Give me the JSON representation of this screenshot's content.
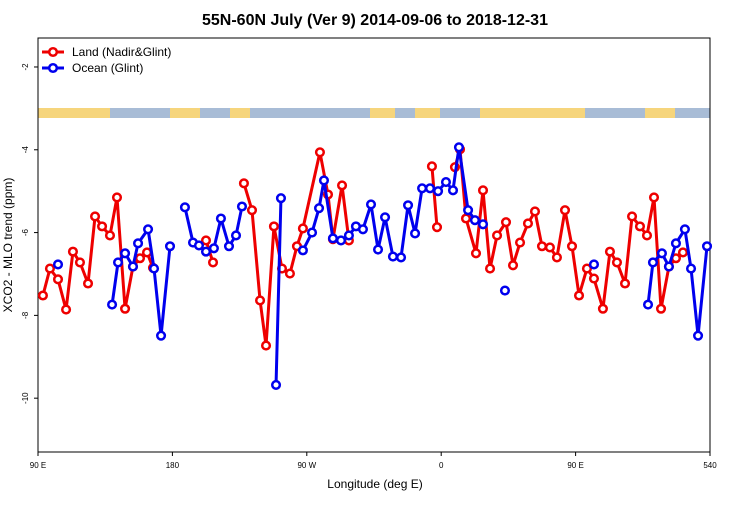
{
  "chart_data": {
    "type": "line",
    "title": "55N-60N July (Ver 9)   2014-09-06 to 2018-12-31",
    "x_label": "Longitude (deg E)",
    "y_label": "XCO2 - MLO trend (ppm)",
    "xlim": [
      90,
      540
    ],
    "xticks": [
      {
        "value": 90,
        "label": "90 E"
      },
      180,
      {
        "value": 270,
        "label": "90 W"
      },
      {
        "value": 360,
        "label": "0"
      },
      {
        "value": 450,
        "label": "90 E"
      },
      540
    ],
    "ylim": [
      -11.3,
      -1.3
    ],
    "yticks": [
      -10,
      -8,
      -6,
      -4,
      -2
    ],
    "legend": "topleft",
    "series": [
      {
        "name": "Land (Nadir&Glint)",
        "color": "#ee0000",
        "x": [
          93.3,
          98.0,
          103.4,
          108.8,
          113.4,
          118.1,
          123.5,
          128.2,
          132.9,
          138.2,
          142.9,
          148.3,
          153.6,
          158.3,
          163.0,
          167.0,
          null,
          202.5,
          207.2,
          null,
          227.9,
          233.3,
          238.7,
          242.7,
          248.0,
          253.4,
          258.7,
          263.4,
          267.4,
          278.8,
          284.2,
          287.5,
          293.6,
          298.2,
          null,
          353.8,
          357.2,
          null,
          369.2,
          372.6,
          376.6,
          383.3,
          388.0,
          392.7,
          397.4,
          403.4,
          408.1,
          412.8,
          418.1,
          422.8,
          427.5,
          432.8,
          437.5,
          442.9,
          447.6,
          452.3,
          457.6,
          462.3,
          468.3,
          473.0,
          477.7,
          483.1,
          487.8,
          493.1,
          497.8,
          502.5,
          507.2,
          512.5,
          517.2,
          521.9
        ],
        "values": [
          -7.52,
          -6.87,
          -7.13,
          -7.86,
          -6.46,
          -6.72,
          -7.23,
          -5.61,
          -5.85,
          -6.07,
          -5.15,
          -7.84,
          -6.82,
          -6.62,
          -6.48,
          -6.85,
          null,
          -6.19,
          -6.72,
          null,
          -4.81,
          -5.46,
          -7.64,
          -8.73,
          -5.85,
          -6.87,
          -6.99,
          -6.33,
          -5.9,
          -4.06,
          -5.08,
          -6.16,
          -4.86,
          -6.19,
          null,
          -4.4,
          -5.87,
          null,
          -4.42,
          -3.99,
          -5.66,
          -6.5,
          -4.98,
          -6.87,
          -6.07,
          -5.75,
          -6.79,
          -6.24,
          -5.78,
          -5.49,
          -6.33,
          -6.36,
          -6.6,
          -5.46,
          -6.33,
          -7.52,
          -6.87,
          -7.11,
          -7.84,
          -6.46,
          -6.72,
          -7.23,
          -5.61,
          -5.85,
          -6.07,
          -5.15,
          -7.84,
          -6.82,
          -6.62,
          -6.48
        ]
      },
      {
        "name": "Ocean (Glint)",
        "color": "#0000ee",
        "x": [
          103.4,
          null,
          139.6,
          143.6,
          148.3,
          153.6,
          157.0,
          163.7,
          167.7,
          172.4,
          178.4,
          null,
          188.4,
          193.8,
          197.8,
          202.5,
          207.8,
          212.5,
          217.9,
          222.6,
          226.6,
          null,
          249.4,
          252.7,
          null,
          267.4,
          273.5,
          278.2,
          281.5,
          287.5,
          292.9,
          298.2,
          302.9,
          307.6,
          313.0,
          317.7,
          322.4,
          327.7,
          333.1,
          337.8,
          342.5,
          347.2,
          352.5,
          357.9,
          363.2,
          367.9,
          371.9,
          378.0,
          382.6,
          388.0,
          null,
          402.7,
          null,
          462.3,
          null,
          498.5,
          501.8,
          507.8,
          512.5,
          517.2,
          523.2,
          527.3,
          532.0,
          538.0
        ],
        "values": [
          -6.77,
          null,
          -7.74,
          -6.72,
          -6.5,
          -6.82,
          -6.26,
          -5.92,
          -6.87,
          -8.49,
          -6.33,
          null,
          -5.39,
          -6.24,
          -6.31,
          -6.46,
          -6.38,
          -5.66,
          -6.33,
          -6.07,
          -5.37,
          null,
          -9.68,
          -5.17,
          null,
          -6.43,
          -6.0,
          -5.41,
          -4.74,
          -6.14,
          -6.19,
          -6.07,
          -5.85,
          -5.92,
          -5.32,
          -6.41,
          -5.63,
          -6.58,
          -6.6,
          -5.34,
          -6.02,
          -4.93,
          -4.93,
          -5.0,
          -4.78,
          -4.98,
          -3.94,
          -5.46,
          -5.7,
          -5.8,
          null,
          -7.4,
          null,
          -6.77,
          null,
          -7.74,
          -6.72,
          -6.5,
          -6.82,
          -6.26,
          -5.92,
          -6.87,
          -8.49,
          -6.33
        ]
      }
    ]
  }
}
